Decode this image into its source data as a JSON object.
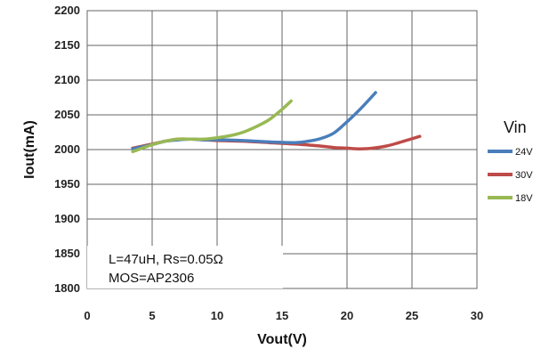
{
  "chart_data": {
    "type": "line",
    "xlabel": "Vout(V)",
    "ylabel": "Iout(mA)",
    "xlim": [
      0,
      30
    ],
    "ylim": [
      1800,
      2200
    ],
    "xticks": [
      0,
      5,
      10,
      15,
      20,
      25,
      30
    ],
    "yticks": [
      1800,
      1850,
      1900,
      1950,
      2000,
      2050,
      2100,
      2150,
      2200
    ],
    "grid": true,
    "legend": {
      "title": "Vin",
      "placement": "right"
    },
    "annotation": [
      "L=47uH, Rs=0.05Ω",
      "MOS=AP2306"
    ],
    "series": [
      {
        "name": "24V",
        "color": "#4a7ebb",
        "x": [
          3.5,
          5,
          6,
          7,
          8,
          9,
          10,
          12,
          14,
          16,
          17,
          18,
          19,
          20,
          21,
          22.2
        ],
        "y": [
          2001,
          2007,
          2012,
          2014,
          2015,
          2014,
          2014,
          2013,
          2011,
          2010,
          2012,
          2016,
          2024,
          2040,
          2058,
          2082
        ]
      },
      {
        "name": "30V",
        "color": "#be4b48",
        "x": [
          3.5,
          5,
          6,
          7,
          8,
          9,
          10,
          12,
          14,
          16,
          18,
          19,
          20,
          21,
          22,
          23,
          24,
          25.6
        ],
        "y": [
          2002,
          2008,
          2012,
          2015,
          2015,
          2014,
          2013,
          2012,
          2010,
          2008,
          2005,
          2003,
          2002,
          2001,
          2002,
          2005,
          2010,
          2019
        ]
      },
      {
        "name": "18V",
        "color": "#98b954",
        "x": [
          3.5,
          5,
          6,
          7,
          8,
          9,
          10,
          11,
          12,
          13,
          14,
          15,
          15.7
        ],
        "y": [
          1997,
          2007,
          2012,
          2015,
          2015,
          2015,
          2017,
          2020,
          2025,
          2033,
          2043,
          2058,
          2070
        ]
      }
    ]
  }
}
